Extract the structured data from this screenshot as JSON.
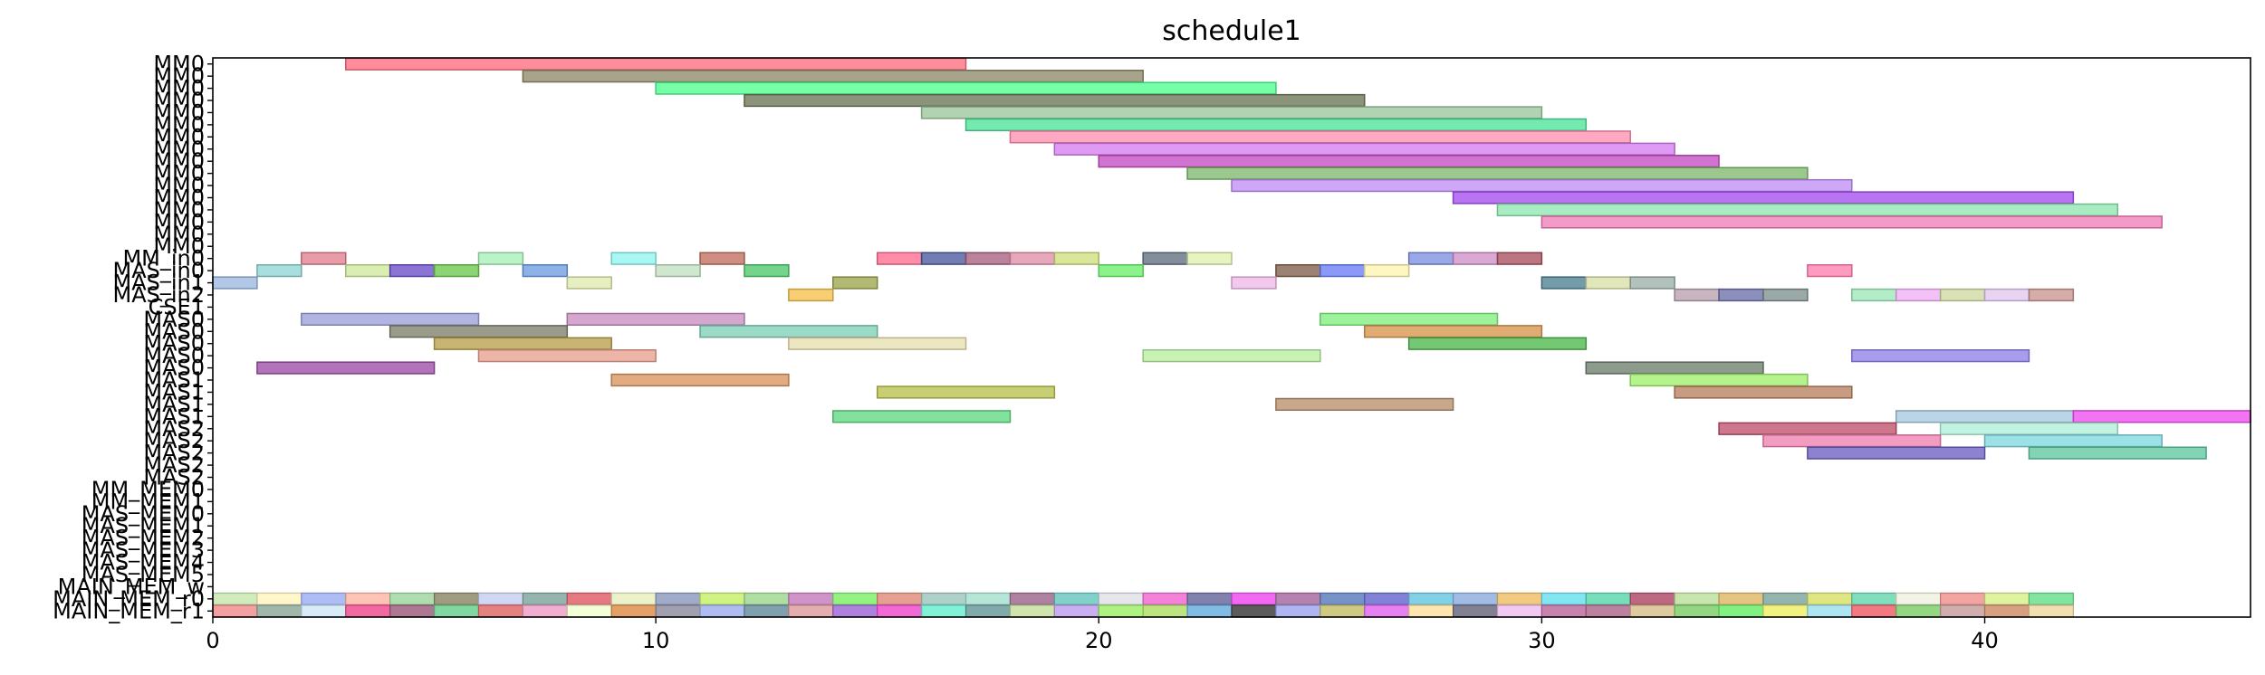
{
  "chart_data": {
    "type": "bar",
    "subtype": "gantt",
    "title": "schedule1",
    "xlabel": "",
    "ylabel": "",
    "xlim": [
      0,
      46
    ],
    "x_ticks": [
      0,
      10,
      20,
      30,
      40
    ],
    "grid": false,
    "rows": [
      "MM0",
      "MM0",
      "MM0",
      "MM0",
      "MM0",
      "MM0",
      "MM0",
      "MM0",
      "MM0",
      "MM0",
      "MM0",
      "MM0",
      "MM0",
      "MM0",
      "MM0",
      "MM0",
      "MM_in0",
      "MAS_in0",
      "MAS_in1",
      "MAS_in2",
      "CSE1",
      "MAS0",
      "MAS0",
      "MAS0",
      "MAS0",
      "MAS0",
      "MAS1",
      "MAS1",
      "MAS1",
      "MAS1",
      "MAS2",
      "MAS2",
      "MAS2",
      "MAS2",
      "MAS2",
      "MM_MEM0",
      "MM_MEM1",
      "MAS_MEM0",
      "MAS_MEM1",
      "MAS_MEM2",
      "MAS_MEM3",
      "MAS_MEM4",
      "MAS_MEM5",
      "MAIN_MEM_w",
      "MAIN_MEM_r0",
      "MAIN_MEM_r1"
    ],
    "bars": [
      {
        "row": 0,
        "start": 3,
        "end": 17,
        "color": "#ff6b7f"
      },
      {
        "row": 1,
        "start": 7,
        "end": 21,
        "color": "#8f8a6b"
      },
      {
        "row": 2,
        "start": 10,
        "end": 24,
        "color": "#4dff8f"
      },
      {
        "row": 3,
        "start": 12,
        "end": 26,
        "color": "#6b7556"
      },
      {
        "row": 4,
        "start": 16,
        "end": 30,
        "color": "#9cc79c"
      },
      {
        "row": 5,
        "start": 17,
        "end": 31,
        "color": "#4de39a"
      },
      {
        "row": 6,
        "start": 18,
        "end": 32,
        "color": "#ff8fb0"
      },
      {
        "row": 7,
        "start": 19,
        "end": 33,
        "color": "#d67df0"
      },
      {
        "row": 8,
        "start": 20,
        "end": 34,
        "color": "#c44dc4"
      },
      {
        "row": 9,
        "start": 22,
        "end": 36,
        "color": "#7fb86b"
      },
      {
        "row": 10,
        "start": 23,
        "end": 37,
        "color": "#c08ff5"
      },
      {
        "row": 11,
        "start": 28,
        "end": 42,
        "color": "#a54df0"
      },
      {
        "row": 12,
        "start": 29,
        "end": 43,
        "color": "#8fe8b0"
      },
      {
        "row": 13,
        "start": 30,
        "end": 44,
        "color": "#f07db8"
      },
      {
        "row": 16,
        "start": 2,
        "end": 3,
        "color": "#e0808f"
      },
      {
        "row": 16,
        "start": 6,
        "end": 7,
        "color": "#a8efb8"
      },
      {
        "row": 16,
        "start": 9,
        "end": 10,
        "color": "#8ff5f0"
      },
      {
        "row": 16,
        "start": 11,
        "end": 12,
        "color": "#c0705f"
      },
      {
        "row": 16,
        "start": 15,
        "end": 16,
        "color": "#ff6b8f"
      },
      {
        "row": 16,
        "start": 16,
        "end": 17,
        "color": "#4a5a9c"
      },
      {
        "row": 16,
        "start": 17,
        "end": 18,
        "color": "#a8607f"
      },
      {
        "row": 16,
        "start": 18,
        "end": 19,
        "color": "#e08fa8"
      },
      {
        "row": 16,
        "start": 19,
        "end": 20,
        "color": "#d0e07d"
      },
      {
        "row": 16,
        "start": 21,
        "end": 22,
        "color": "#5f6f7f"
      },
      {
        "row": 16,
        "start": 22,
        "end": 23,
        "color": "#e0f0b0"
      },
      {
        "row": 16,
        "start": 27,
        "end": 28,
        "color": "#7d8fe0"
      },
      {
        "row": 16,
        "start": 28,
        "end": 29,
        "color": "#d08fc8"
      },
      {
        "row": 16,
        "start": 29,
        "end": 30,
        "color": "#a8505f"
      },
      {
        "row": 17,
        "start": 1,
        "end": 2,
        "color": "#8fd5d5"
      },
      {
        "row": 17,
        "start": 3,
        "end": 4,
        "color": "#d0e89c"
      },
      {
        "row": 17,
        "start": 4,
        "end": 5,
        "color": "#6b4dc8"
      },
      {
        "row": 17,
        "start": 5,
        "end": 6,
        "color": "#6bc84d"
      },
      {
        "row": 17,
        "start": 7,
        "end": 8,
        "color": "#6b9ce0"
      },
      {
        "row": 17,
        "start": 10,
        "end": 11,
        "color": "#c0e0c0"
      },
      {
        "row": 17,
        "start": 12,
        "end": 13,
        "color": "#4dc86b"
      },
      {
        "row": 17,
        "start": 20,
        "end": 21,
        "color": "#6bf06b"
      },
      {
        "row": 17,
        "start": 24,
        "end": 25,
        "color": "#7f5f4a"
      },
      {
        "row": 17,
        "start": 25,
        "end": 26,
        "color": "#6b7df5"
      },
      {
        "row": 17,
        "start": 26,
        "end": 27,
        "color": "#fff5b0"
      },
      {
        "row": 17,
        "start": 36,
        "end": 37,
        "color": "#ff7db0"
      },
      {
        "row": 18,
        "start": 0,
        "end": 1,
        "color": "#9cb8e0"
      },
      {
        "row": 18,
        "start": 8,
        "end": 9,
        "color": "#e0eab0"
      },
      {
        "row": 18,
        "start": 14,
        "end": 15,
        "color": "#9ca54d"
      },
      {
        "row": 18,
        "start": 23,
        "end": 24,
        "color": "#f0b8e8"
      },
      {
        "row": 18,
        "start": 30,
        "end": 31,
        "color": "#4d7f8f"
      },
      {
        "row": 18,
        "start": 31,
        "end": 32,
        "color": "#d8e0a8"
      },
      {
        "row": 18,
        "start": 32,
        "end": 33,
        "color": "#9cb0a8"
      },
      {
        "row": 19,
        "start": 13,
        "end": 14,
        "color": "#f5c04d"
      },
      {
        "row": 19,
        "start": 33,
        "end": 34,
        "color": "#b8a0b0"
      },
      {
        "row": 19,
        "start": 34,
        "end": 35,
        "color": "#6b70a8"
      },
      {
        "row": 19,
        "start": 35,
        "end": 36,
        "color": "#7f8f8f"
      },
      {
        "row": 19,
        "start": 37,
        "end": 38,
        "color": "#9ce8b8"
      },
      {
        "row": 19,
        "start": 38,
        "end": 39,
        "color": "#f0b0f5"
      },
      {
        "row": 19,
        "start": 39,
        "end": 40,
        "color": "#d0d8a0"
      },
      {
        "row": 19,
        "start": 40,
        "end": 41,
        "color": "#e0c8f0"
      },
      {
        "row": 19,
        "start": 41,
        "end": 42,
        "color": "#c8958f"
      },
      {
        "row": 21,
        "start": 2,
        "end": 6,
        "color": "#9ca0d8"
      },
      {
        "row": 21,
        "start": 8,
        "end": 12,
        "color": "#c88fc0"
      },
      {
        "row": 21,
        "start": 25,
        "end": 29,
        "color": "#80f080"
      },
      {
        "row": 22,
        "start": 4,
        "end": 8,
        "color": "#7f7f6b"
      },
      {
        "row": 22,
        "start": 11,
        "end": 15,
        "color": "#80d0b8"
      },
      {
        "row": 22,
        "start": 26,
        "end": 30,
        "color": "#d8954d"
      },
      {
        "row": 23,
        "start": 5,
        "end": 9,
        "color": "#b8a04d"
      },
      {
        "row": 23,
        "start": 13,
        "end": 17,
        "color": "#e8e0b0"
      },
      {
        "row": 23,
        "start": 27,
        "end": 31,
        "color": "#4db84d"
      },
      {
        "row": 24,
        "start": 6,
        "end": 10,
        "color": "#e8a08f"
      },
      {
        "row": 24,
        "start": 21,
        "end": 25,
        "color": "#b8f0a0"
      },
      {
        "row": 24,
        "start": 37,
        "end": 41,
        "color": "#8f80e8"
      },
      {
        "row": 25,
        "start": 1,
        "end": 5,
        "color": "#9c4da5"
      },
      {
        "row": 25,
        "start": 31,
        "end": 35,
        "color": "#6b7f6b"
      },
      {
        "row": 26,
        "start": 9,
        "end": 13,
        "color": "#d8955f"
      },
      {
        "row": 26,
        "start": 32,
        "end": 36,
        "color": "#a0f06b"
      },
      {
        "row": 27,
        "start": 15,
        "end": 19,
        "color": "#b8c04d"
      },
      {
        "row": 27,
        "start": 33,
        "end": 37,
        "color": "#b8805f"
      },
      {
        "row": 28,
        "start": 24,
        "end": 28,
        "color": "#b88f6b"
      },
      {
        "row": 29,
        "start": 14,
        "end": 18,
        "color": "#5fd880"
      },
      {
        "row": 29,
        "start": 38,
        "end": 42,
        "color": "#a8c8e0"
      },
      {
        "row": 29,
        "start": 42,
        "end": 46,
        "color": "#f04df0"
      },
      {
        "row": 30,
        "start": 34,
        "end": 38,
        "color": "#c0506b"
      },
      {
        "row": 30,
        "start": 39,
        "end": 43,
        "color": "#b0f0d8"
      },
      {
        "row": 31,
        "start": 35,
        "end": 39,
        "color": "#f080b0"
      },
      {
        "row": 31,
        "start": 40,
        "end": 44,
        "color": "#80d8e0"
      },
      {
        "row": 32,
        "start": 36,
        "end": 40,
        "color": "#6b5fc0"
      },
      {
        "row": 32,
        "start": 41,
        "end": 45,
        "color": "#5fc8a0"
      }
    ],
    "memory_w_colors": [
      "#c8e8b0",
      "#fff5c0",
      "#a0b0f5",
      "#ffb8a8",
      "#a0d8a0",
      "#8f8a6b",
      "#c8d0f0",
      "#80a8a0",
      "#e0606b",
      "#e8f0c0",
      "#8f9cc0",
      "#c8f06b",
      "#a0d890",
      "#c880c0",
      "#80f06b",
      "#e08f7f",
      "#a0c8c0",
      "#a8e0d0",
      "#a06b8f",
      "#6bc8c0",
      "#e0e0e8",
      "#f06bd0",
      "#6b6ba0",
      "#f04df0",
      "#a86ba0",
      "#5f7fc0",
      "#6b6bd0",
      "#6bc8e0",
      "#8fb0e0",
      "#f0c06b",
      "#6be0f0",
      "#5fd8b0",
      "#b04d6b",
      "#c0e0a0",
      "#e0b86b",
      "#80a8a0",
      "#d8e06b",
      "#6bd8b0",
      "#f0f0e0",
      "#f0958f",
      "#d8f08f",
      "#6be08f"
    ],
    "memory_r0_colors": [
      "#f08f8f",
      "#8faa9c",
      "#d0e8f8",
      "#f04d8f",
      "#a05f7f",
      "#6bd08f",
      "#e06b6b",
      "#f0a0c8",
      "#f0ffd0",
      "#e08f4d",
      "#8f8fa0",
      "#a0b0f0",
      "#6b8fa0",
      "#e0a0a0",
      "#a06bd8",
      "#f04dd0",
      "#6bf0d0",
      "#6b9c9c",
      "#c8e0a0",
      "#c0a0f0",
      "#a0f06b",
      "#b0e06b",
      "#6bb0e0",
      "#404040",
      "#a0a8f0",
      "#c8c06b",
      "#e06bf0",
      "#ffe0a0",
      "#6b6b80",
      "#f0c0f0",
      "#c06ba0",
      "#b06b8f",
      "#d8c08f",
      "#80d06b",
      "#6bf06b",
      "#f0f06b",
      "#a0e0f0",
      "#f0606b",
      "#80d06b",
      "#c8a0a0",
      "#d08f6b",
      "#f0d8a0"
    ]
  }
}
